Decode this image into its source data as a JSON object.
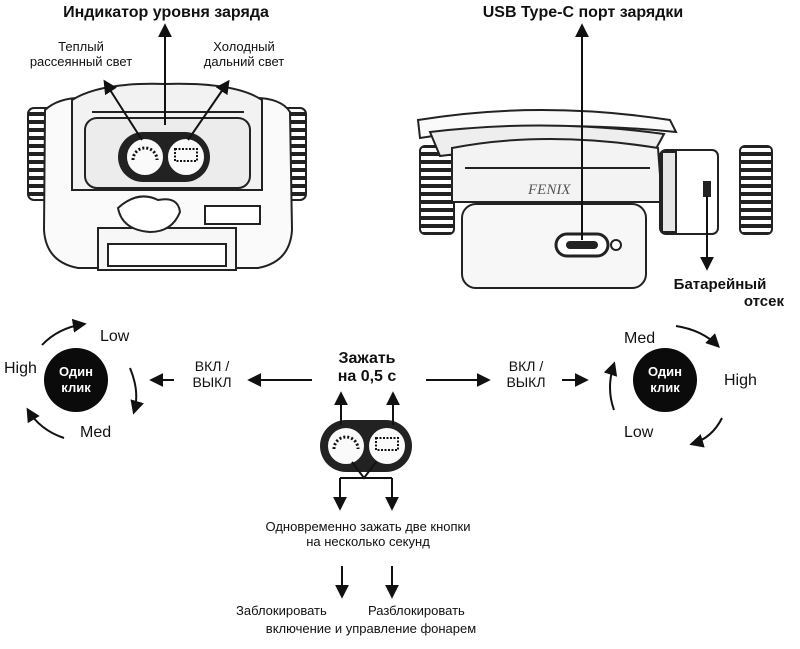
{
  "labels": {
    "charge_indicator": "Индикатор уровня заряда",
    "usb_port": "USB Type-C порт зарядки",
    "warm_light_1": "Теплый",
    "warm_light_2": "рассеянный свет",
    "cold_light_1": "Холодный",
    "cold_light_2": "дальний свет",
    "battery_1": "Батарейный",
    "battery_2": "отсек",
    "hold_1": "Зажать",
    "hold_2": "на 0,5 с",
    "onoff_1": "ВКЛ /",
    "onoff_2": "ВЫКЛ",
    "single_click_1": "Один",
    "single_click_2": "клик",
    "low": "Low",
    "high": "High",
    "med": "Med",
    "both_1": "Одновременно зажать две кнопки",
    "both_2": "на несколько секунд",
    "lock": "Заблокировать",
    "unlock": "Разблокировать",
    "lock_desc": "включение и управление фонарем",
    "brand": "FENIX"
  },
  "colors": {
    "ink": "#111111",
    "circle": "#0b0b0b",
    "body": "#f4f4f4",
    "accent": "#444444"
  }
}
